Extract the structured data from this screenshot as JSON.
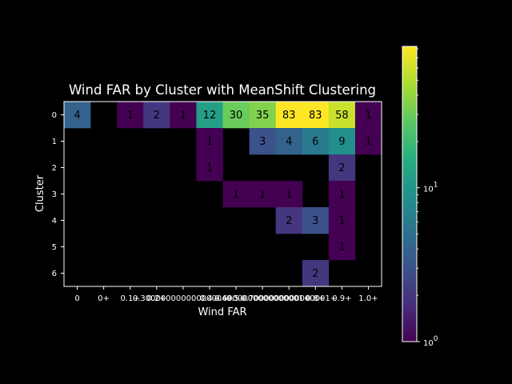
{
  "chart_data": {
    "type": "heatmap",
    "title": "Wind FAR by Cluster with MeanShift Clustering",
    "xlabel": "Wind FAR",
    "ylabel": "Cluster",
    "x_tick_labels": [
      "0",
      "0+",
      "0.1+",
      "0.2+",
      "0.30000000000000004+",
      "0.4+",
      "0.5+",
      "0.6000000000000001+",
      "0.7000000000000001+",
      "0.8+",
      "0.9+",
      "1.0+"
    ],
    "y_tick_labels": [
      "0",
      "1",
      "2",
      "3",
      "4",
      "5",
      "6"
    ],
    "cells": [
      {
        "row": 0,
        "col": 0,
        "value": 4
      },
      {
        "row": 0,
        "col": 2,
        "value": 1
      },
      {
        "row": 0,
        "col": 3,
        "value": 2
      },
      {
        "row": 0,
        "col": 4,
        "value": 1
      },
      {
        "row": 0,
        "col": 5,
        "value": 12
      },
      {
        "row": 0,
        "col": 6,
        "value": 30
      },
      {
        "row": 0,
        "col": 7,
        "value": 35
      },
      {
        "row": 0,
        "col": 8,
        "value": 83
      },
      {
        "row": 0,
        "col": 9,
        "value": 83
      },
      {
        "row": 0,
        "col": 10,
        "value": 58
      },
      {
        "row": 0,
        "col": 11,
        "value": 1
      },
      {
        "row": 1,
        "col": 5,
        "value": 1
      },
      {
        "row": 1,
        "col": 7,
        "value": 3
      },
      {
        "row": 1,
        "col": 8,
        "value": 4
      },
      {
        "row": 1,
        "col": 9,
        "value": 6
      },
      {
        "row": 1,
        "col": 10,
        "value": 9
      },
      {
        "row": 1,
        "col": 11,
        "value": 1
      },
      {
        "row": 2,
        "col": 5,
        "value": 1
      },
      {
        "row": 2,
        "col": 10,
        "value": 2
      },
      {
        "row": 3,
        "col": 6,
        "value": 1
      },
      {
        "row": 3,
        "col": 7,
        "value": 1
      },
      {
        "row": 3,
        "col": 8,
        "value": 1
      },
      {
        "row": 3,
        "col": 10,
        "value": 1
      },
      {
        "row": 4,
        "col": 8,
        "value": 2
      },
      {
        "row": 4,
        "col": 9,
        "value": 3
      },
      {
        "row": 4,
        "col": 10,
        "value": 1
      },
      {
        "row": 5,
        "col": 10,
        "value": 1
      },
      {
        "row": 6,
        "col": 9,
        "value": 2
      }
    ],
    "color_scale": {
      "type": "log",
      "colormap": "viridis",
      "range": [
        1,
        83
      ],
      "tick_labels": [
        {
          "value": 1,
          "label": "10",
          "exponent": "0"
        },
        {
          "value": 10,
          "label": "10",
          "exponent": "1"
        }
      ]
    },
    "background": "#000000"
  }
}
